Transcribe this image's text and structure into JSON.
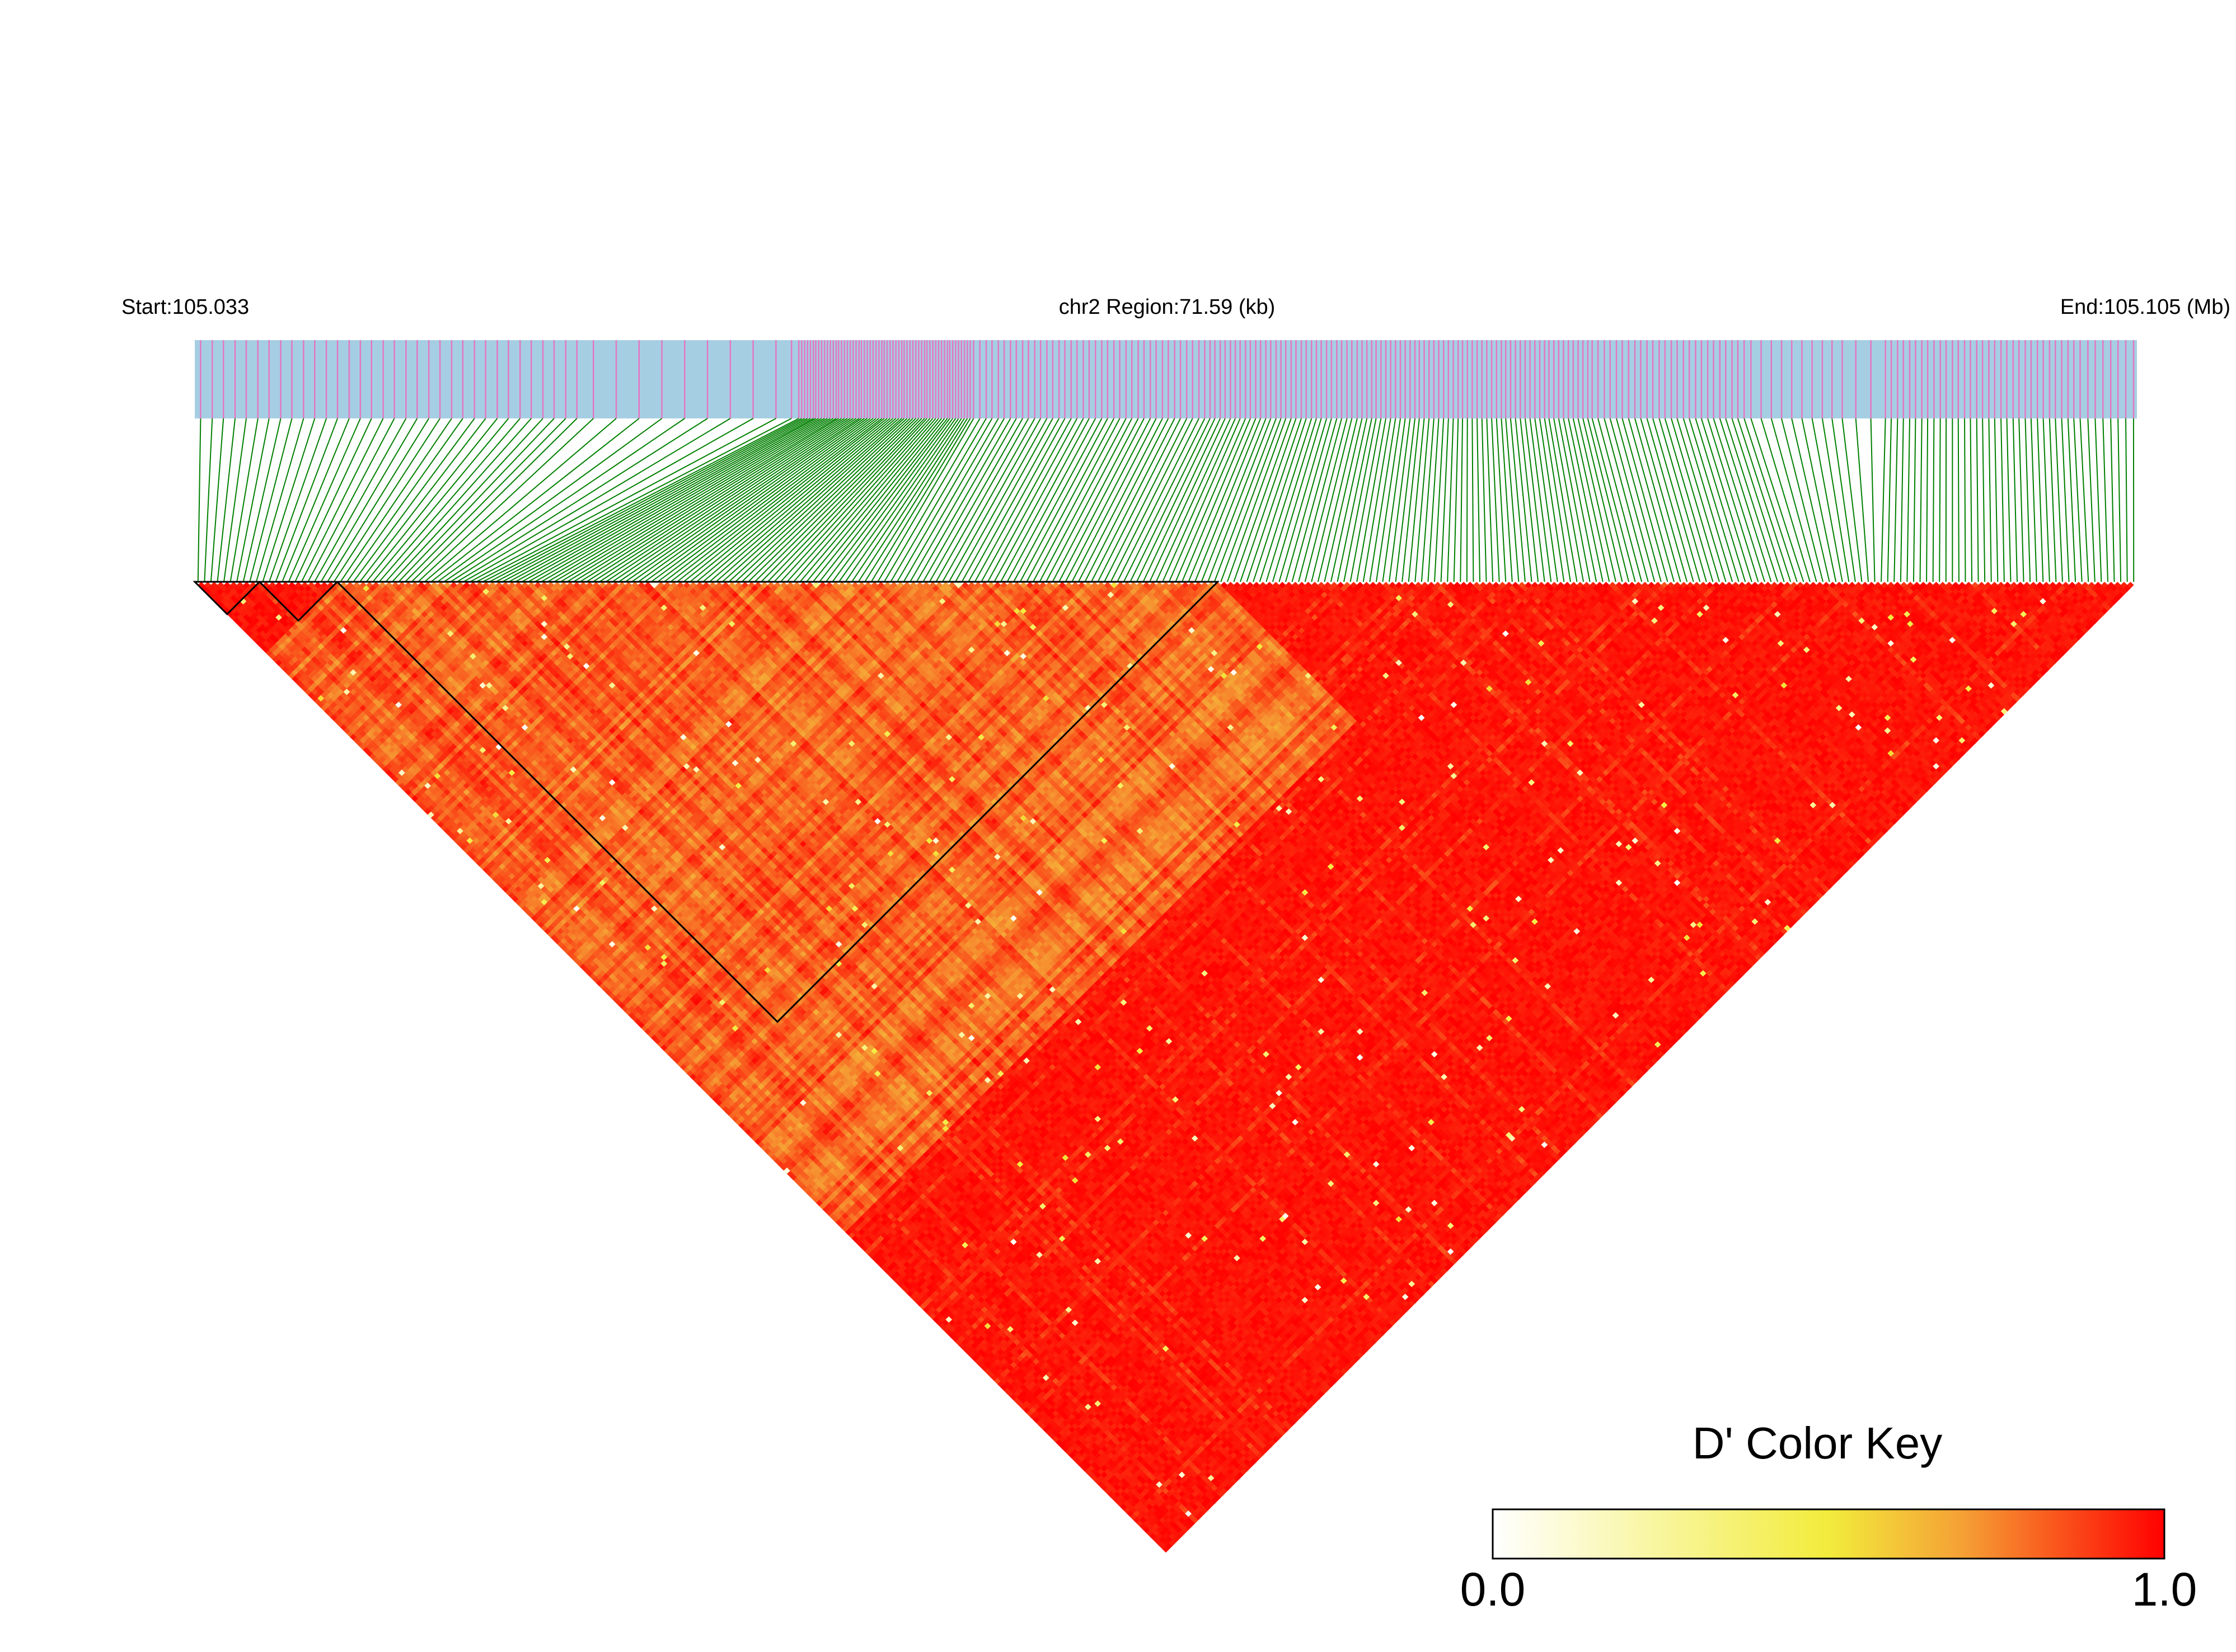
{
  "chart_data": {
    "type": "heatmap",
    "subtype": "linkage-disequilibrium-triangle",
    "title": "chr2 Region:71.59 (kb)",
    "start_label": "Start:105.033",
    "end_label": "End:105.105 (Mb)",
    "region": {
      "chromosome": "chr2",
      "start_mb": 105.033,
      "end_mb": 105.105,
      "length_kb": 71.59
    },
    "metric": "D'",
    "n_snps": 300,
    "snp_density_profile": [
      [
        0.0,
        0.8
      ],
      [
        0.2,
        0.4
      ],
      [
        0.3,
        0.6
      ],
      [
        0.31,
        3.2
      ],
      [
        0.4,
        1.5
      ],
      [
        0.52,
        1.8
      ],
      [
        0.6,
        1.9
      ],
      [
        0.72,
        1.5
      ],
      [
        0.8,
        0.9
      ],
      [
        0.85,
        0.6
      ],
      [
        0.87,
        1.5
      ],
      [
        0.97,
        1.2
      ],
      [
        1.0,
        0.9
      ]
    ],
    "blocks": [
      {
        "snp_start": 0,
        "snp_end": 10
      },
      {
        "snp_start": 10,
        "snp_end": 22
      },
      {
        "snp_start": 22,
        "snp_end": 158
      }
    ],
    "color_key": {
      "title": "D' Color Key",
      "min_label": "0.0",
      "max_label": "1.0",
      "colors": [
        "#ffffff",
        "#f2ec3c",
        "#f5a035",
        "#ff0000"
      ]
    },
    "colors": {
      "snp_bar_fill": "#a6cee3",
      "snp_tick": "#e377c2",
      "connector": "#008000",
      "block_outline": "#000000"
    }
  }
}
